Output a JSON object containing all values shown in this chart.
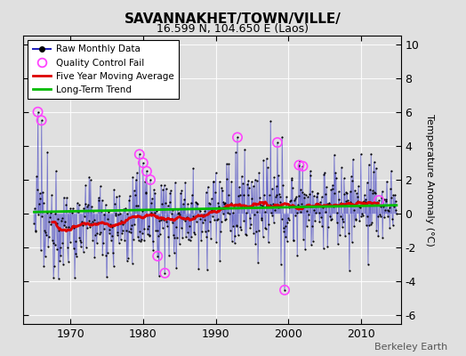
{
  "title": "SAVANNAKHET/TOWN/VILLE/",
  "subtitle": "16.599 N, 104.650 E (Laos)",
  "ylabel": "Temperature Anomaly (°C)",
  "credit": "Berkeley Earth",
  "ylim": [
    -6.5,
    10.5
  ],
  "xlim": [
    1963.5,
    2015.5
  ],
  "yticks": [
    -6,
    -4,
    -2,
    0,
    2,
    4,
    6,
    8,
    10
  ],
  "xticks": [
    1970,
    1980,
    1990,
    2000,
    2010
  ],
  "bg_color": "#e0e0e0",
  "plot_bg_color": "#e0e0e0",
  "raw_color": "#2222bb",
  "raw_fill_color": "#9999dd",
  "qc_color": "#ff44ff",
  "moving_avg_color": "#dd0000",
  "trend_color": "#00bb00",
  "seed": 12345
}
